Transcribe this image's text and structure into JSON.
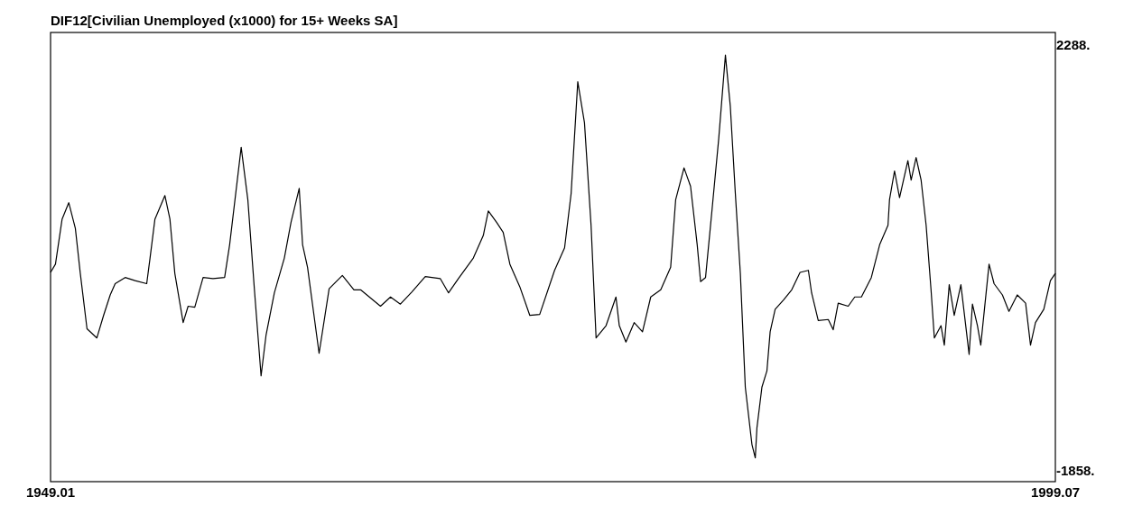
{
  "chart_data": {
    "type": "line",
    "title": "DIF12[Civilian Unemployed (x1000) for 15+ Weeks SA]",
    "x": [
      "1949-01",
      "1949-04",
      "1949-08",
      "1949-12",
      "1950-04",
      "1950-07",
      "1950-11",
      "1951-05",
      "1951-09",
      "1952-01",
      "1952-04",
      "1952-10",
      "1953-04",
      "1953-11",
      "1954-01",
      "1954-04",
      "1954-10",
      "1955-01",
      "1955-04",
      "1955-09",
      "1955-12",
      "1956-04",
      "1956-09",
      "1957-03",
      "1957-10",
      "1958-01",
      "1958-08",
      "1958-12",
      "1959-04",
      "1959-08",
      "1959-11",
      "1960-04",
      "1960-10",
      "1961-02",
      "1961-07",
      "1961-09",
      "1961-12",
      "1962-07",
      "1963-01",
      "1963-09",
      "1964-04",
      "1964-08",
      "1965-08",
      "1966-02",
      "1966-08",
      "1967-03",
      "1967-11",
      "1968-08",
      "1969-01",
      "1969-07",
      "1970-04",
      "1970-10",
      "1971-01",
      "1971-06",
      "1971-10",
      "1972-02",
      "1972-08",
      "1973-02",
      "1973-08",
      "1974-05",
      "1974-11",
      "1975-03",
      "1975-07",
      "1975-11",
      "1976-03",
      "1976-06",
      "1976-12",
      "1977-06",
      "1977-08",
      "1977-12",
      "1978-05",
      "1978-10",
      "1979-03",
      "1979-09",
      "1980-03",
      "1980-06",
      "1980-11",
      "1981-03",
      "1981-07",
      "1981-09",
      "1981-12",
      "1982-04",
      "1982-08",
      "1982-12",
      "1983-03",
      "1983-06",
      "1983-09",
      "1983-12",
      "1984-04",
      "1984-06",
      "1984-07",
      "1984-10",
      "1985-01",
      "1985-03",
      "1985-06",
      "1985-11",
      "1986-04",
      "1986-09",
      "1987-02",
      "1987-04",
      "1987-08",
      "1988-02",
      "1988-05",
      "1988-08",
      "1989-02",
      "1989-06",
      "1989-10",
      "1990-04",
      "1990-09",
      "1991-02",
      "1991-03",
      "1991-06",
      "1991-09",
      "1992-02",
      "1992-04",
      "1992-07",
      "1992-10",
      "1993-01",
      "1993-04",
      "1993-06",
      "1993-10",
      "1993-12",
      "1994-03",
      "1994-06",
      "1994-10",
      "1995-03",
      "1995-05",
      "1995-08",
      "1995-10",
      "1996-03",
      "1996-06",
      "1996-11",
      "1997-03",
      "1997-08",
      "1998-01",
      "1998-04",
      "1998-07",
      "1998-12",
      "1999-04",
      "1999-07"
    ],
    "series": [
      {
        "color": "#000000",
        "values": [
          70,
          150,
          590,
          750,
          500,
          60,
          -480,
          -570,
          -350,
          -150,
          -40,
          20,
          -10,
          -40,
          210,
          590,
          820,
          590,
          60,
          -420,
          -260,
          -270,
          20,
          10,
          20,
          340,
          1290,
          780,
          -100,
          -940,
          -540,
          -130,
          210,
          560,
          890,
          340,
          120,
          -720,
          -90,
          40,
          -100,
          -100,
          -260,
          -170,
          -240,
          -120,
          30,
          10,
          -130,
          10,
          210,
          430,
          670,
          560,
          460,
          150,
          -70,
          -350,
          -340,
          90,
          310,
          840,
          1930,
          1530,
          530,
          -570,
          -450,
          -170,
          -450,
          -610,
          -420,
          -510,
          -170,
          -100,
          120,
          780,
          1090,
          910,
          340,
          -20,
          20,
          690,
          1380,
          2190,
          1690,
          840,
          60,
          -1050,
          -1610,
          -1740,
          -1450,
          -1050,
          -890,
          -510,
          -290,
          -200,
          -100,
          70,
          90,
          -130,
          -400,
          -390,
          -490,
          -230,
          -260,
          -170,
          -170,
          20,
          340,
          530,
          780,
          1060,
          800,
          1160,
          970,
          1190,
          970,
          530,
          -100,
          -570,
          -450,
          -640,
          -50,
          -350,
          -50,
          -730,
          -240,
          -450,
          -640,
          150,
          -40,
          -150,
          -310,
          -150,
          -230,
          -640,
          -420,
          -290,
          -10,
          60
        ]
      }
    ],
    "xlim": [
      "1949-01",
      "1999-07"
    ],
    "xticks": [
      {
        "value": "1949-01",
        "label": "1949.01"
      },
      {
        "value": "1999-07",
        "label": "1999.07"
      }
    ],
    "ylim": [
      -1972,
      2411
    ],
    "yticks": [
      {
        "value": 2288,
        "label": "2288."
      },
      {
        "value": -1858,
        "label": "-1858."
      }
    ],
    "grid": false
  }
}
